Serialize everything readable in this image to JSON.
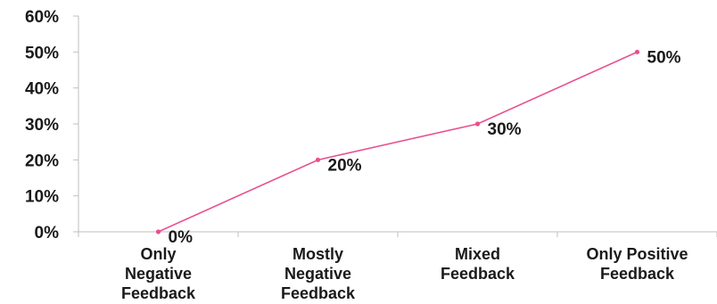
{
  "chart_data": {
    "type": "line",
    "title": "",
    "xlabel": "",
    "ylabel": "",
    "categories": [
      [
        "Only",
        "Negative",
        "Feedback"
      ],
      [
        "Mostly",
        "Negative",
        "Feedback"
      ],
      [
        "Mixed",
        "Feedback"
      ],
      [
        "Only Positive",
        "Feedback"
      ]
    ],
    "series": [
      {
        "values": [
          0,
          20,
          30,
          50
        ],
        "color": "#e8508f"
      }
    ],
    "data_labels": [
      "0%",
      "20%",
      "30%",
      "50%"
    ],
    "ylim": [
      0,
      60
    ],
    "yticks": [
      0,
      10,
      20,
      30,
      40,
      50,
      60
    ],
    "ytick_labels": [
      "0%",
      "10%",
      "20%",
      "30%",
      "40%",
      "50%",
      "60%"
    ],
    "grid": false,
    "legend": "none"
  }
}
